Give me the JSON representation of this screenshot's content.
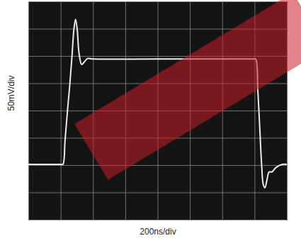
{
  "chart_data": {
    "type": "line",
    "xlabel": "200ns/div",
    "ylabel": "50mV/div",
    "x": [
      0,
      200,
      212,
      225,
      240,
      255,
      268,
      280,
      290,
      300,
      312,
      328,
      345,
      365,
      400,
      800,
      1390,
      1405,
      1418,
      1430,
      1442,
      1452,
      1462,
      1474,
      1488,
      1505,
      1530,
      1570,
      1600
    ],
    "values": [
      -98,
      -98,
      -98,
      -55,
      0,
      50,
      100,
      150,
      168,
      150,
      105,
      85,
      90,
      96,
      95,
      95,
      95,
      95,
      40,
      -30,
      -100,
      -135,
      -141,
      -128,
      -112,
      -112,
      -104,
      -98,
      -98
    ],
    "color": "#ececec",
    "xlim": [
      0,
      1600
    ],
    "xticks": [
      0,
      200,
      400,
      600,
      800,
      1000,
      1200,
      1400,
      1600
    ],
    "ylim": [
      -200,
      200
    ],
    "yticks": [
      -200,
      -150,
      -100,
      -50,
      0,
      50,
      100,
      150,
      200
    ],
    "grid": true,
    "tick_labels": false
  }
}
